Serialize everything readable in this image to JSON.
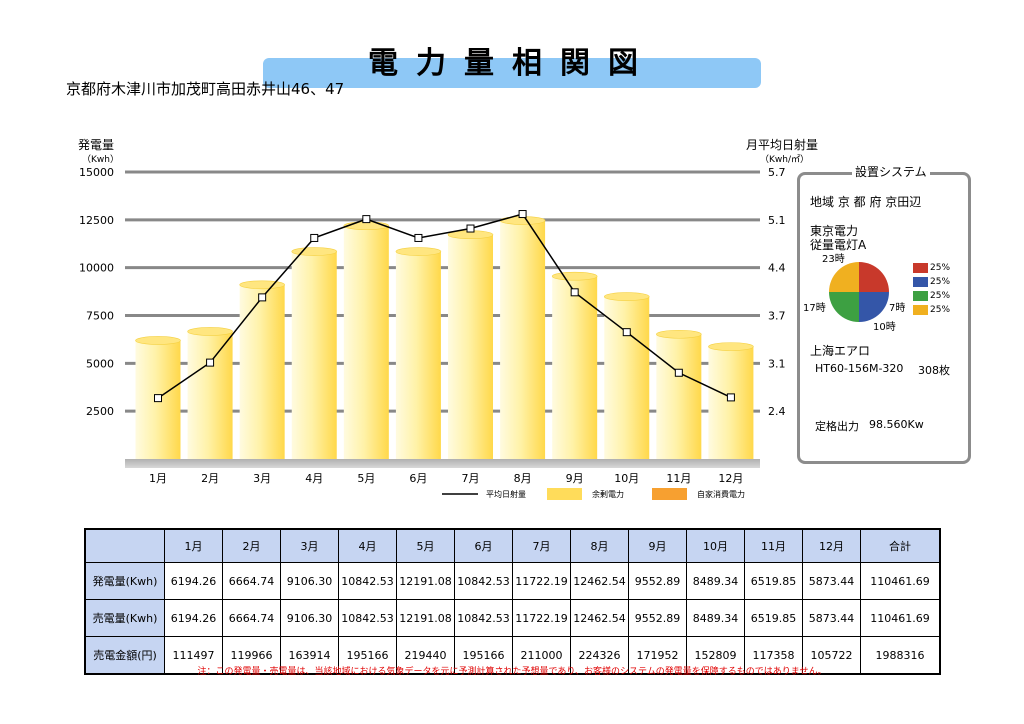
{
  "header": {
    "title": "電力量相関図",
    "address": "京都府木津川市加茂町高田赤井山46、47"
  },
  "colors": {
    "bar_light": "#fffbe0",
    "bar_dark": "#ffdc5a",
    "own_use": "#f7a030",
    "title_bar": "#8ec8f6",
    "axis": "#888888"
  },
  "chart_data": {
    "type": "bar",
    "categories": [
      "1月",
      "2月",
      "3月",
      "4月",
      "5月",
      "6月",
      "7月",
      "8月",
      "9月",
      "10月",
      "11月",
      "12月"
    ],
    "series": [
      {
        "name": "余剰電力",
        "axis": "left",
        "values": [
          6194.26,
          6664.74,
          9106.3,
          10842.53,
          12191.08,
          10842.53,
          11722.19,
          12462.54,
          9552.89,
          8489.34,
          6519.85,
          5873.44
        ]
      },
      {
        "name": "平均日射量",
        "axis": "right",
        "type": "line",
        "values": [
          2.58,
          3.07,
          3.97,
          4.79,
          5.05,
          4.79,
          4.92,
          5.12,
          4.04,
          3.49,
          2.93,
          2.59
        ]
      },
      {
        "name": "自家消費電力",
        "axis": "left",
        "values": [
          0,
          0,
          0,
          0,
          0,
          0,
          0,
          0,
          0,
          0,
          0,
          0
        ]
      }
    ],
    "left_axis": {
      "label": "発電量",
      "unit": "（Kwh）",
      "ticks": [
        "15000",
        "12500",
        "10000",
        "7500",
        "5000",
        "2500"
      ],
      "ylim": [
        0,
        15000
      ]
    },
    "right_axis": {
      "label": "月平均日射量",
      "unit": "（Kwh/㎡）",
      "ticks": [
        "5.7",
        "5.1",
        "4.4",
        "3.7",
        "3.1",
        "2.4"
      ]
    },
    "legend": [
      "平均日射量",
      "余剰電力",
      "自家消費電力"
    ],
    "legend_position": "bottom"
  },
  "system": {
    "title": "設置システム",
    "region": "地域  京 都 府  京田辺",
    "utility": "東京電力",
    "plan": "従量電灯A",
    "pie": {
      "slices": [
        {
          "label": "23時",
          "pct": "25%",
          "value": 25,
          "color": "#c8392b"
        },
        {
          "label": "7時",
          "pct": "25%",
          "value": 25,
          "color": "#3456a8"
        },
        {
          "label": "10時",
          "pct": "25%",
          "value": 25,
          "color": "#3da042"
        },
        {
          "label": "17時",
          "pct": "25%",
          "value": 25,
          "color": "#f0b020"
        }
      ]
    },
    "maker": "上海エアロ",
    "model": "HT60-156M-320",
    "count": "308枚",
    "rated_label": "定格出力",
    "rated_value": "98.560Kw"
  },
  "table": {
    "headers": [
      "",
      "1月",
      "2月",
      "3月",
      "4月",
      "5月",
      "6月",
      "7月",
      "8月",
      "9月",
      "10月",
      "11月",
      "12月",
      "合計"
    ],
    "rows": [
      {
        "label": "発電量(Kwh)",
        "cells": [
          "6194.26",
          "6664.74",
          "9106.30",
          "10842.53",
          "12191.08",
          "10842.53",
          "11722.19",
          "12462.54",
          "9552.89",
          "8489.34",
          "6519.85",
          "5873.44",
          "110461.69"
        ]
      },
      {
        "label": "売電量(Kwh)",
        "cells": [
          "6194.26",
          "6664.74",
          "9106.30",
          "10842.53",
          "12191.08",
          "10842.53",
          "11722.19",
          "12462.54",
          "9552.89",
          "8489.34",
          "6519.85",
          "5873.44",
          "110461.69"
        ]
      },
      {
        "label": "売電金額(円)",
        "cells": [
          "111497",
          "119966",
          "163914",
          "195166",
          "219440",
          "195166",
          "211000",
          "224326",
          "171952",
          "152809",
          "117358",
          "105722",
          "1988316"
        ]
      }
    ]
  },
  "note": "注：この発電量・売電量は、当該地域における気象データを元に予測計算された予想量であり、お客様のシステムの発電量を保障するものではありません。"
}
